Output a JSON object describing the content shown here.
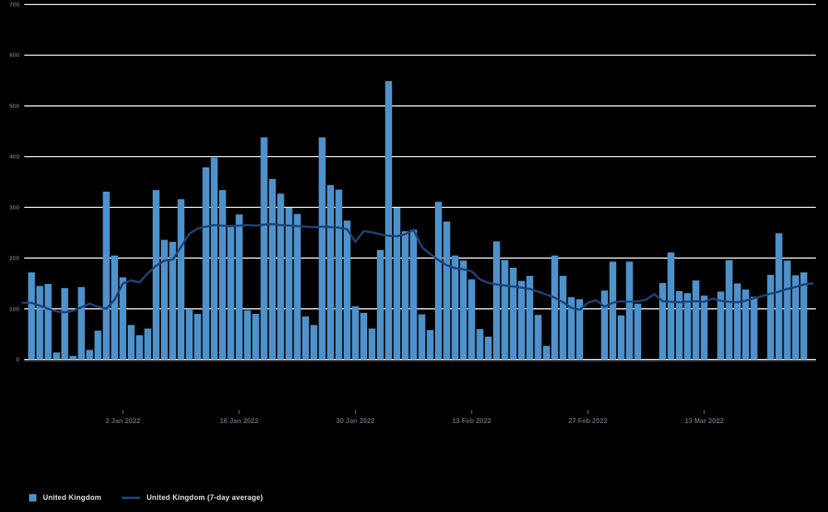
{
  "legend": {
    "series1_label": "United Kingdom",
    "series2_label": "United Kingdom (7-day average)"
  },
  "colors": {
    "background": "#000000",
    "bar": "#4e92cc",
    "line": "#1b4379",
    "grid": "#ffffff",
    "axis_text": "#5f6670",
    "legend_text": "#e3e3e3",
    "axis_line": "#3f3f3f"
  },
  "chart_data": {
    "type": "bar",
    "overlay_type": "line",
    "title": "",
    "xlabel": "",
    "ylabel": "",
    "y_axis": {
      "min": 0,
      "max": 700,
      "ticks": [
        700,
        600,
        500,
        400,
        300,
        200,
        100,
        0
      ],
      "grid": true
    },
    "x_axis": {
      "tick_labels": [
        "2 Jan 2022",
        "16 Jan 2022",
        "30 Jan 2022",
        "13 Feb 2022",
        "27 Feb 2022",
        "13 Mar 2022"
      ],
      "tick_indices": [
        11,
        25,
        39,
        53,
        67,
        81
      ]
    },
    "legend_position": "bottom-left",
    "dates": [
      "22 Dec 2021",
      "23 Dec 2021",
      "24 Dec 2021",
      "25 Dec 2021",
      "26 Dec 2021",
      "27 Dec 2021",
      "28 Dec 2021",
      "29 Dec 2021",
      "30 Dec 2021",
      "31 Dec 2021",
      "1 Jan 2022",
      "2 Jan 2022",
      "3 Jan 2022",
      "4 Jan 2022",
      "5 Jan 2022",
      "6 Jan 2022",
      "7 Jan 2022",
      "8 Jan 2022",
      "9 Jan 2022",
      "10 Jan 2022",
      "11 Jan 2022",
      "12 Jan 2022",
      "13 Jan 2022",
      "14 Jan 2022",
      "15 Jan 2022",
      "16 Jan 2022",
      "17 Jan 2022",
      "18 Jan 2022",
      "19 Jan 2022",
      "20 Jan 2022",
      "21 Jan 2022",
      "22 Jan 2022",
      "23 Jan 2022",
      "24 Jan 2022",
      "25 Jan 2022",
      "26 Jan 2022",
      "27 Jan 2022",
      "28 Jan 2022",
      "29 Jan 2022",
      "30 Jan 2022",
      "31 Jan 2022",
      "1 Feb 2022",
      "2 Feb 2022",
      "3 Feb 2022",
      "4 Feb 2022",
      "5 Feb 2022",
      "6 Feb 2022",
      "7 Feb 2022",
      "8 Feb 2022",
      "9 Feb 2022",
      "10 Feb 2022",
      "11 Feb 2022",
      "12 Feb 2022",
      "13 Feb 2022",
      "14 Feb 2022",
      "15 Feb 2022",
      "16 Feb 2022",
      "17 Feb 2022",
      "18 Feb 2022",
      "19 Feb 2022",
      "20 Feb 2022",
      "21 Feb 2022",
      "22 Feb 2022",
      "23 Feb 2022",
      "24 Feb 2022",
      "25 Feb 2022",
      "26 Feb 2022",
      "27 Feb 2022",
      "28 Feb 2022",
      "1 Mar 2022",
      "2 Mar 2022",
      "3 Mar 2022",
      "4 Mar 2022",
      "5 Mar 2022",
      "6 Mar 2022",
      "7 Mar 2022",
      "8 Mar 2022",
      "9 Mar 2022",
      "10 Mar 2022",
      "11 Mar 2022",
      "12 Mar 2022",
      "13 Mar 2022",
      "14 Mar 2022",
      "15 Mar 2022",
      "16 Mar 2022",
      "17 Mar 2022",
      "18 Mar 2022",
      "19 Mar 2022",
      "20 Mar 2022",
      "21 Mar 2022",
      "22 Mar 2022",
      "23 Mar 2022",
      "24 Mar 2022",
      "25 Mar 2022"
    ],
    "series": [
      {
        "name": "United Kingdom",
        "type": "bar",
        "values": [
          172,
          145,
          149,
          14,
          141,
          7,
          143,
          19,
          57,
          331,
          205,
          162,
          68,
          48,
          61,
          334,
          236,
          232,
          316,
          98,
          90,
          379,
          398,
          334,
          261,
          286,
          97,
          90,
          438,
          356,
          327,
          299,
          287,
          85,
          68,
          438,
          344,
          335,
          274,
          105,
          92,
          61,
          216,
          549,
          299,
          253,
          256,
          89,
          58,
          311,
          272,
          205,
          195,
          158,
          60,
          45,
          233,
          196,
          181,
          155,
          165,
          88,
          27,
          205,
          165,
          123,
          119,
          0,
          0,
          136,
          193,
          87,
          193,
          110,
          0,
          0,
          151,
          211,
          135,
          131,
          156,
          126,
          0,
          134,
          196,
          150,
          138,
          124,
          0,
          167,
          249,
          195,
          166,
          172
        ]
      },
      {
        "name": "United Kingdom (7-day average)",
        "type": "line",
        "values": [
          112,
          106,
          100,
          95,
          93,
          96,
          103,
          110,
          104,
          100,
          118,
          150,
          156,
          152,
          170,
          185,
          195,
          197,
          222,
          248,
          258,
          262,
          265,
          264,
          263,
          264,
          265,
          264,
          266,
          267,
          265,
          264,
          263,
          262,
          261,
          262,
          261,
          260,
          257,
          232,
          253,
          251,
          247,
          244,
          243,
          247,
          256,
          222,
          208,
          196,
          186,
          180,
          178,
          174,
          158,
          151,
          148,
          146,
          144,
          142,
          139,
          134,
          128,
          122,
          113,
          102,
          98,
          112,
          117,
          104,
          112,
          115,
          114,
          115,
          118,
          129,
          115,
          114,
          113,
          114,
          115,
          114,
          120,
          116,
          114,
          113,
          116,
          121,
          125,
          130,
          134,
          139,
          143,
          148
        ]
      }
    ]
  }
}
